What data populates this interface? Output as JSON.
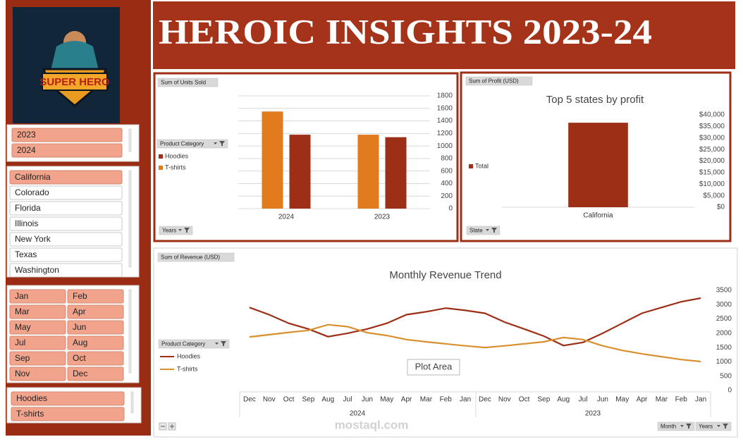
{
  "title": "HEROIC INSIGHTS  2023-24",
  "logo_text": "SUPER HERO",
  "slicers": [
    {
      "items": [
        {
          "label": "2023",
          "selected": true
        },
        {
          "label": "2024",
          "selected": true
        }
      ]
    },
    {
      "items": [
        {
          "label": "California",
          "selected": true
        },
        {
          "label": "Colorado",
          "selected": false
        },
        {
          "label": "Florida",
          "selected": false
        },
        {
          "label": "Illinois",
          "selected": false
        },
        {
          "label": "New York",
          "selected": false
        },
        {
          "label": "Texas",
          "selected": false
        },
        {
          "label": "Washington",
          "selected": false
        }
      ]
    },
    {
      "items": [
        {
          "label": "Jan",
          "selected": true
        },
        {
          "label": "Feb",
          "selected": true
        },
        {
          "label": "Mar",
          "selected": true
        },
        {
          "label": "Apr",
          "selected": true
        },
        {
          "label": "May",
          "selected": true
        },
        {
          "label": "Jun",
          "selected": true
        },
        {
          "label": "Jul",
          "selected": true
        },
        {
          "label": "Aug",
          "selected": true
        },
        {
          "label": "Sep",
          "selected": true
        },
        {
          "label": "Oct",
          "selected": true
        },
        {
          "label": "Nov",
          "selected": true
        },
        {
          "label": "Dec",
          "selected": true
        }
      ]
    },
    {
      "items": [
        {
          "label": "Hoodies",
          "selected": true
        },
        {
          "label": "T-shirts",
          "selected": true
        }
      ]
    }
  ],
  "chart_data": [
    {
      "type": "bar",
      "field_button": "Sum of Units Sold",
      "legend_title": "Product Category",
      "axis_button": "Years",
      "categories": [
        "2024",
        "2023"
      ],
      "series": [
        {
          "name": "Hoodies",
          "color": "#9c2f16",
          "values": [
            1180,
            1140
          ]
        },
        {
          "name": "T-shirts",
          "color": "#e07b1e",
          "values": [
            1550,
            1180
          ]
        }
      ],
      "ylim": [
        0,
        1800
      ],
      "yticks": [
        0,
        200,
        400,
        600,
        800,
        1000,
        1200,
        1400,
        1600,
        1800
      ],
      "grid": true
    },
    {
      "type": "bar",
      "field_button": "Sum of Profit (USD)",
      "title": "Top 5 states by profit",
      "axis_button": "State",
      "categories": [
        "California"
      ],
      "series": [
        {
          "name": "Total",
          "color": "#9c2f16",
          "values": [
            36600
          ]
        }
      ],
      "ylim": [
        0,
        40000
      ],
      "yticks": [
        {
          "value": 0,
          "label": "$0"
        },
        {
          "value": 5000,
          "label": "$5,000"
        },
        {
          "value": 10000,
          "label": "$10,000"
        },
        {
          "value": 15000,
          "label": "$15,000"
        },
        {
          "value": 20000,
          "label": "$20,000"
        },
        {
          "value": 25000,
          "label": "$25,000"
        },
        {
          "value": 30000,
          "label": "$30,000"
        },
        {
          "value": 35000,
          "label": "$35,000"
        },
        {
          "value": 40000,
          "label": "$40,000"
        }
      ],
      "grid": false
    },
    {
      "type": "line",
      "field_button": "Sum of Revenue (USD)",
      "title": "Monthly Revenue Trend",
      "legend_title": "Product Category",
      "categories": [
        "Dec",
        "Nov",
        "Oct",
        "Sep",
        "Aug",
        "Jul",
        "Jun",
        "May",
        "Apr",
        "Mar",
        "Feb",
        "Jan",
        "Dec",
        "Nov",
        "Oct",
        "Sep",
        "Aug",
        "Jul",
        "Jun",
        "May",
        "Apr",
        "Mar",
        "Feb",
        "Jan"
      ],
      "groups": [
        "2024",
        "2023"
      ],
      "series": [
        {
          "name": "Hoodies",
          "color": "#9c2f16",
          "values": [
            2900,
            2650,
            2350,
            2150,
            1880,
            2000,
            2150,
            2350,
            2650,
            2750,
            2880,
            2800,
            2700,
            2390,
            2150,
            1900,
            1570,
            1680,
            2000,
            2350,
            2700,
            2900,
            3100,
            3230
          ]
        },
        {
          "name": "T-shirts",
          "color": "#d9902e",
          "values": [
            1870,
            1950,
            2030,
            2100,
            2300,
            2230,
            2020,
            1920,
            1780,
            1700,
            1630,
            1560,
            1500,
            1560,
            1630,
            1700,
            1850,
            1780,
            1560,
            1400,
            1280,
            1180,
            1080,
            1010
          ]
        }
      ],
      "ylim": [
        0,
        3500
      ],
      "yticks": [
        0,
        500,
        1000,
        1500,
        2000,
        2500,
        3000,
        3500
      ],
      "grid": false,
      "buttons": [
        "Month",
        "Years"
      ]
    }
  ],
  "tooltip": "Plot Area",
  "watermark": "mostaql.com"
}
